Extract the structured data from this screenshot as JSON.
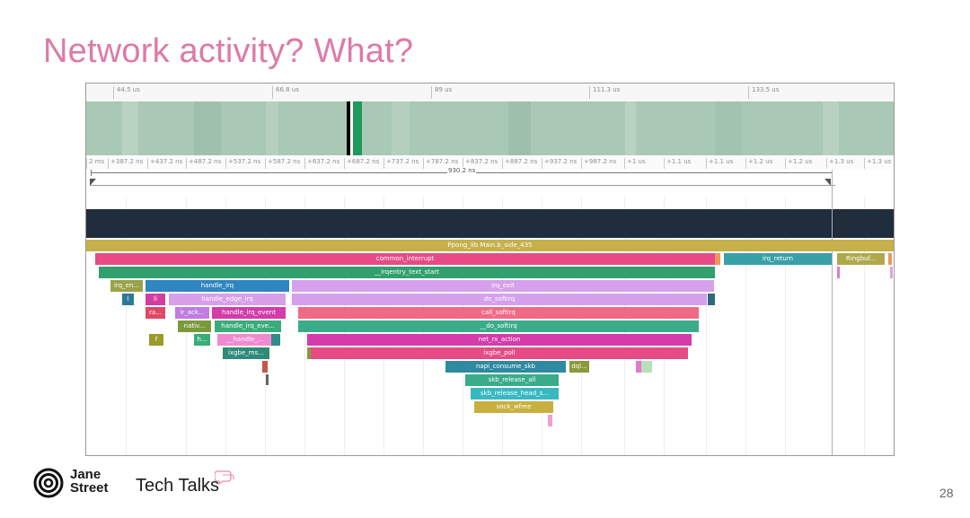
{
  "slide": {
    "title": "Network activity? What?",
    "page_number": "28"
  },
  "branding": {
    "company_line1": "Jane",
    "company_line2": "Street",
    "series": "Tech Talks"
  },
  "trace": {
    "ruler_ticks": [
      "44.5 us",
      "66.8 us",
      "89 us",
      "111.3 us",
      "133.5 us"
    ],
    "zoom_ticks": [
      "2 ms",
      "+387.2 ns",
      "+437.2 ns",
      "+487.2 ns",
      "+537.2 ns",
      "+587.2 ns",
      "+637.2 ns",
      "+687.2 ns",
      "+737.2 ns",
      "+787.2 ns",
      "+837.2 ns",
      "+887.2 ns",
      "+937.2 ns",
      "+987.2 ns",
      "+1 us",
      "+1.1 us",
      "+1.1 us",
      "+1.2 us",
      "+1.2 us",
      "+1.3 us",
      "+1.3 us"
    ],
    "measurement": "930.2 ns",
    "frames": [
      {
        "label": "Ppong_lib Main.b_side_435",
        "color": "#c5b04a"
      },
      {
        "label": "common_interrupt",
        "color": "#e64b86"
      },
      {
        "label": "irq_return",
        "color": "#3aa0a8"
      },
      {
        "label": "Ringbuf...",
        "color": "#b0a84a"
      },
      {
        "label": "__irqentry_text_start",
        "color": "#2fa06e"
      },
      {
        "label": "irq_en...",
        "color": "#9aa24a"
      },
      {
        "label": "handle_irq",
        "color": "#2f86c0"
      },
      {
        "label": "irq_exit",
        "color": "#d6a0ec"
      },
      {
        "label": "l",
        "color": "#2d7a98"
      },
      {
        "label": "li",
        "color": "#d23ea0"
      },
      {
        "label": "handle_edge_irq",
        "color": "#d8a0e8"
      },
      {
        "label": "do_softirq",
        "color": "#d6a0ec"
      },
      {
        "label": "ra...",
        "color": "#e04868"
      },
      {
        "label": "ir_ack...",
        "color": "#c07ce0"
      },
      {
        "label": "handle_irq_event",
        "color": "#d33caa"
      },
      {
        "label": "call_softirq",
        "color": "#f06a86"
      },
      {
        "label": "nativ...",
        "color": "#7a9a3a"
      },
      {
        "label": "handle_irq_eve...",
        "color": "#3aac7a"
      },
      {
        "label": "__do_softirq",
        "color": "#3aac8a"
      },
      {
        "label": "f",
        "color": "#9a9a2a"
      },
      {
        "label": "h...",
        "color": "#3aac7a"
      },
      {
        "label": "__handle_...",
        "color": "#f08ad0"
      },
      {
        "label": "net_rx_action",
        "color": "#d33caa"
      },
      {
        "label": "ixgbe_ms...",
        "color": "#2f8a7a"
      },
      {
        "label": "ixgbe_poll",
        "color": "#e64b86"
      },
      {
        "label": "napi_consume_skb",
        "color": "#2d8aa0"
      },
      {
        "label": "dql...",
        "color": "#8a9a3a"
      },
      {
        "label": "skb_release_all",
        "color": "#3aac8a"
      },
      {
        "label": "skb_release_head_s...",
        "color": "#3ab8c0"
      },
      {
        "label": "sock_wfree",
        "color": "#c8b040"
      }
    ]
  },
  "colors": {
    "title": "#dd7aa7",
    "overview_bg": "#a9c8b5",
    "dark_track": "#1f2d3c",
    "trace_border": "#9a9a9a"
  }
}
